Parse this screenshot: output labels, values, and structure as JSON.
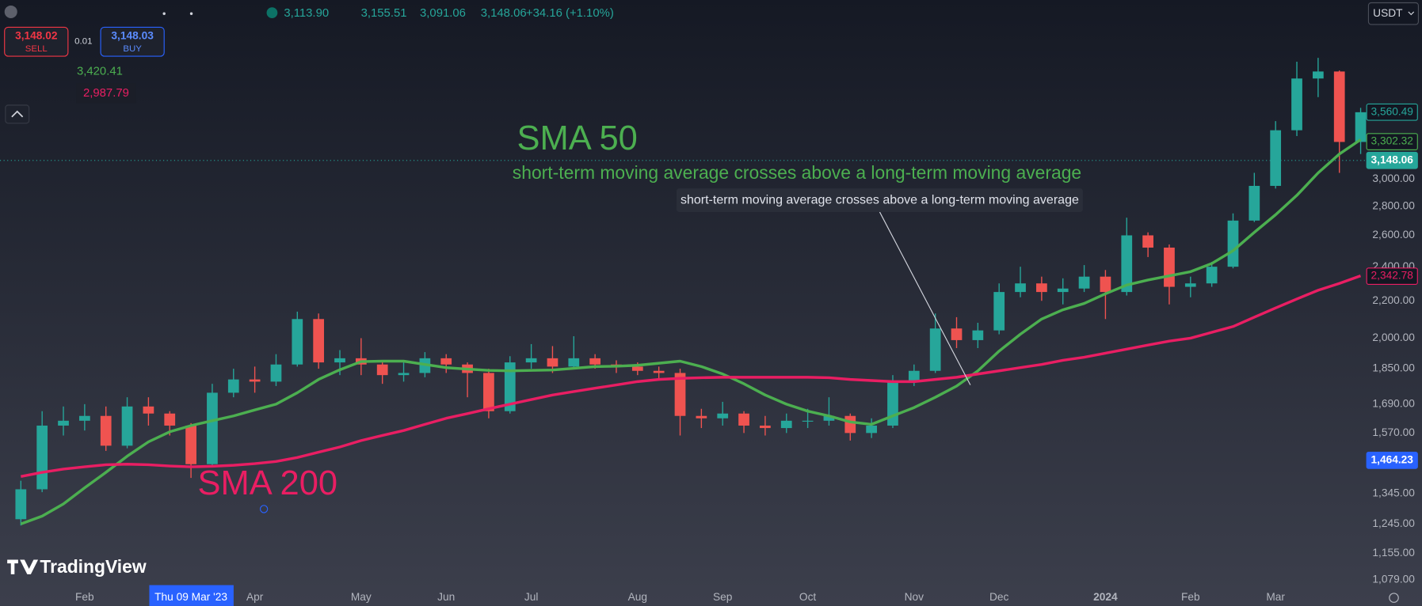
{
  "chart_data": {
    "type": "candlestick",
    "ohlc_header": [
      "3,113.90",
      "3,155.51",
      "3,091.06",
      "3,148.06",
      "+34.16 (+1.10%)"
    ],
    "trade_panel": {
      "sell_price": "3,148.02",
      "sell": "SELL",
      "spread": "0.01",
      "buy_price": "3,148.03",
      "buy": "BUY"
    },
    "indicator_values": [
      "3,420.41",
      "2,987.79"
    ],
    "currency": "USDT",
    "annotation": "short-term moving average crosses above a long-term moving average",
    "tooltip": "short-term moving average crosses above a long-term moving average",
    "logo": "TradingView",
    "categories": [
      null,
      null,
      null,
      "Feb",
      null,
      null,
      null,
      null,
      "Thu 09 Mar '23",
      null,
      null,
      "Apr",
      null,
      null,
      null,
      null,
      "May",
      null,
      null,
      null,
      "Jun",
      null,
      null,
      null,
      "Jul",
      null,
      null,
      null,
      null,
      "Aug",
      null,
      null,
      null,
      "Sep",
      null,
      null,
      null,
      "Oct",
      null,
      null,
      null,
      null,
      "Nov",
      null,
      null,
      null,
      "Dec",
      null,
      null,
      null,
      null,
      "2024",
      null,
      null,
      null,
      "Feb",
      null,
      null,
      null,
      "Mar",
      null,
      null,
      null,
      null
    ],
    "open": [
      1260,
      1360,
      1600,
      1620,
      1640,
      1520,
      1680,
      1650,
      1600,
      1450,
      1740,
      1800,
      1790,
      1870,
      2100,
      1880,
      1900,
      1870,
      1820,
      1830,
      1900,
      1870,
      1830,
      1660,
      1880,
      1900,
      1860,
      1900,
      1870,
      1860,
      1840,
      1830,
      1640,
      1630,
      1650,
      1600,
      1590,
      1620,
      1620,
      1640,
      1570,
      1600,
      1790,
      1840,
      2050,
      1990,
      2040,
      2250,
      2300,
      2250,
      2270,
      2340,
      2250,
      2600,
      2520,
      2280,
      2300,
      2400,
      2700,
      2950,
      3400,
      3880,
      3950,
      3300
    ],
    "high": [
      1390,
      1660,
      1680,
      1690,
      1680,
      1720,
      1720,
      1660,
      1610,
      1780,
      1850,
      1860,
      1920,
      2140,
      2130,
      1940,
      2000,
      1890,
      1880,
      1930,
      1920,
      1880,
      1850,
      1910,
      1970,
      1960,
      2010,
      1920,
      1890,
      1880,
      1860,
      1850,
      1670,
      1700,
      1660,
      1640,
      1650,
      1670,
      1720,
      1650,
      1630,
      1820,
      1870,
      2130,
      2110,
      2080,
      2300,
      2400,
      2340,
      2330,
      2410,
      2380,
      2720,
      2620,
      2540,
      2340,
      2430,
      2750,
      3050,
      3480,
      4050,
      4090,
      3960,
      3600
    ],
    "low": [
      1240,
      1350,
      1560,
      1580,
      1500,
      1510,
      1600,
      1560,
      1400,
      1440,
      1720,
      1740,
      1770,
      1860,
      1850,
      1820,
      1820,
      1780,
      1790,
      1810,
      1830,
      1720,
      1630,
      1650,
      1850,
      1830,
      1850,
      1850,
      1830,
      1820,
      1800,
      1560,
      1590,
      1600,
      1570,
      1560,
      1570,
      1590,
      1600,
      1540,
      1550,
      1590,
      1770,
      1830,
      1950,
      1950,
      2020,
      2220,
      2200,
      2180,
      2250,
      2100,
      2230,
      2460,
      2180,
      2220,
      2280,
      2390,
      2690,
      2930,
      3350,
      3700,
      3050,
      3200
    ],
    "close": [
      1360,
      1600,
      1620,
      1640,
      1520,
      1680,
      1650,
      1600,
      1450,
      1740,
      1800,
      1790,
      1870,
      2100,
      1880,
      1900,
      1870,
      1820,
      1830,
      1900,
      1870,
      1830,
      1660,
      1880,
      1900,
      1860,
      1900,
      1870,
      1860,
      1840,
      1830,
      1640,
      1630,
      1650,
      1600,
      1590,
      1620,
      1620,
      1640,
      1570,
      1600,
      1790,
      1840,
      2050,
      1990,
      2040,
      2250,
      2300,
      2250,
      2270,
      2340,
      2250,
      2600,
      2520,
      2280,
      2300,
      2400,
      2700,
      2950,
      3400,
      3880,
      3950,
      3300,
      3560
    ],
    "up_color": "#26a69a",
    "down_color": "#ef5350",
    "series": [
      {
        "name": "SMA 50",
        "color": "#4caf50",
        "values": [
          1245,
          1270,
          1310,
          1365,
          1420,
          1480,
          1535,
          1575,
          1600,
          1620,
          1640,
          1665,
          1690,
          1740,
          1800,
          1845,
          1884,
          1886,
          1886,
          1870,
          1855,
          1848,
          1842,
          1840,
          1842,
          1844,
          1852,
          1860,
          1862,
          1866,
          1876,
          1886,
          1860,
          1825,
          1780,
          1730,
          1690,
          1660,
          1640,
          1615,
          1605,
          1640,
          1675,
          1720,
          1770,
          1840,
          1935,
          2020,
          2100,
          2150,
          2185,
          2240,
          2290,
          2320,
          2345,
          2370,
          2420,
          2500,
          2620,
          2740,
          2880,
          3050,
          3200,
          3320
        ]
      },
      {
        "name": "SMA 200",
        "color": "#e91e63",
        "values": [
          1405,
          1420,
          1432,
          1440,
          1448,
          1450,
          1448,
          1443,
          1440,
          1442,
          1446,
          1452,
          1460,
          1475,
          1495,
          1515,
          1540,
          1560,
          1580,
          1605,
          1630,
          1650,
          1670,
          1690,
          1710,
          1730,
          1745,
          1760,
          1775,
          1790,
          1800,
          1805,
          1808,
          1810,
          1810,
          1810,
          1810,
          1810,
          1808,
          1800,
          1795,
          1790,
          1790,
          1800,
          1810,
          1825,
          1840,
          1855,
          1870,
          1890,
          1905,
          1925,
          1945,
          1965,
          1985,
          2000,
          2030,
          2060,
          2110,
          2160,
          2210,
          2260,
          2300,
          2345
        ]
      }
    ],
    "log_scale": true,
    "grid": false,
    "ylim": [
      1060,
      4740
    ],
    "yticks": [
      {
        "value": 1079,
        "label": "1,079.00"
      },
      {
        "value": 1155,
        "label": "1,155.00"
      },
      {
        "value": 1245,
        "label": "1,245.00"
      },
      {
        "value": 1345,
        "label": "1,345.00"
      },
      {
        "value": 1570,
        "label": "1,570.00"
      },
      {
        "value": 1690,
        "label": "1,690.00"
      },
      {
        "value": 1850,
        "label": "1,850.00"
      },
      {
        "value": 2000,
        "label": "2,000.00"
      },
      {
        "value": 2200,
        "label": "2,200.00"
      },
      {
        "value": 2400,
        "label": "2,400.00"
      },
      {
        "value": 2600,
        "label": "2,600.00"
      },
      {
        "value": 2800,
        "label": "2,800.00"
      },
      {
        "value": 3000,
        "label": "3,000.00"
      }
    ],
    "price_labels": [
      {
        "value": 3560.49,
        "label": "3,560.49",
        "color": "#26a69a",
        "filled": false
      },
      {
        "value": 3302.32,
        "label": "3,302.32",
        "color": "#4caf50",
        "filled": false
      },
      {
        "value": 3148.06,
        "label": "3,148.06",
        "color": "#26a69a",
        "filled": true
      },
      {
        "value": 2342.78,
        "label": "2,342.78",
        "color": "#e91e63",
        "filled": false
      },
      {
        "value": 1464.23,
        "label": "1,464.23",
        "color": "#2962ff",
        "filled": true
      }
    ]
  }
}
